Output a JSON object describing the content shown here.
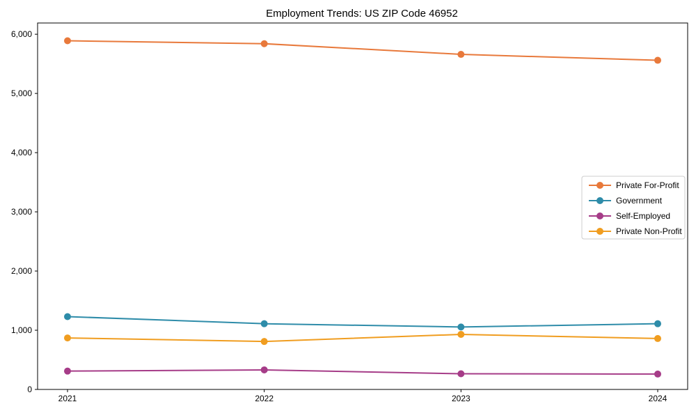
{
  "chart_data": {
    "type": "line",
    "title": "Employment Trends: US ZIP Code 46952",
    "categories": [
      "2021",
      "2022",
      "2023",
      "2024"
    ],
    "series": [
      {
        "name": "Private For-Profit",
        "color": "#e8793b",
        "values": [
          5890,
          5840,
          5660,
          5560
        ]
      },
      {
        "name": "Government",
        "color": "#2e8ca9",
        "values": [
          1230,
          1110,
          1055,
          1110
        ]
      },
      {
        "name": "Self-Employed",
        "color": "#a63c88",
        "values": [
          310,
          330,
          265,
          260
        ]
      },
      {
        "name": "Private Non-Profit",
        "color": "#f09d20",
        "values": [
          870,
          810,
          930,
          860
        ]
      }
    ],
    "xlabel": "",
    "ylabel": "",
    "ylim": [
      0,
      6190
    ],
    "ytick_values": [
      0,
      1000,
      2000,
      3000,
      4000,
      5000,
      6000
    ],
    "ytick_labels": [
      "0",
      "1,000",
      "2,000",
      "3,000",
      "4,000",
      "5,000",
      "6,000"
    ],
    "grid": false,
    "legend_position": "center-right",
    "frame_color": "#000000",
    "tick_color": "#000000",
    "text_color": "#000000",
    "legend_border_color": "#cccccc",
    "legend_background": "#ffffff",
    "plot_background": "#ffffff"
  }
}
